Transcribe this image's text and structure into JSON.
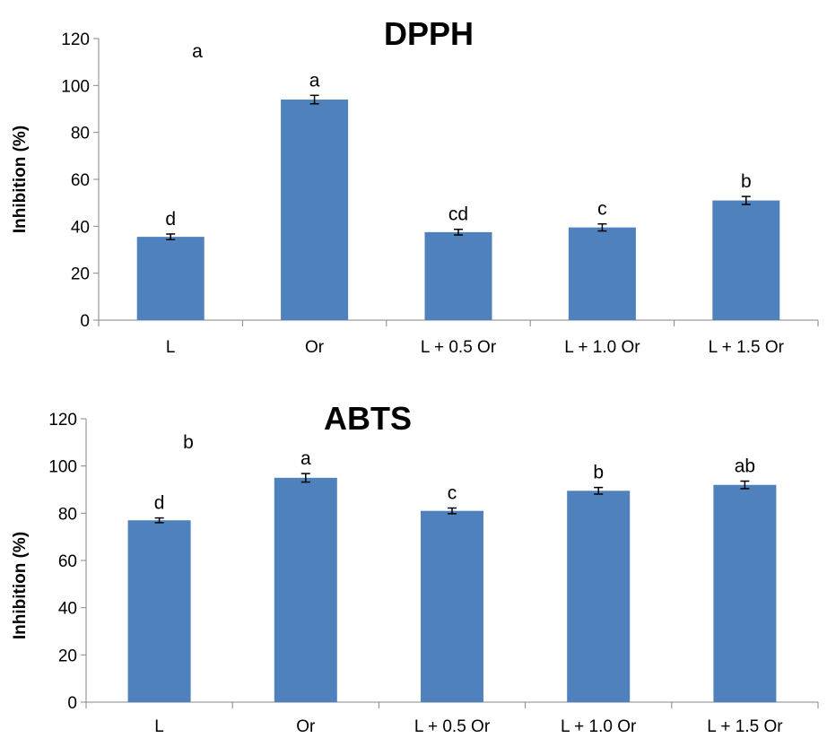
{
  "chart_data": [
    {
      "type": "bar",
      "title": "DPPH",
      "xlabel": "",
      "ylabel": "Inhibition (%)",
      "ylim": [
        0,
        120
      ],
      "yticks": [
        0,
        20,
        40,
        60,
        80,
        100,
        120
      ],
      "categories": [
        "L",
        "Or",
        "L + 0.5 Or",
        "L + 1.0 Or",
        "L + 1.5 Or"
      ],
      "values": [
        35.5,
        94,
        37.5,
        39.5,
        51
      ],
      "errors": [
        1.2,
        1.8,
        1.2,
        1.5,
        1.7
      ],
      "significance": [
        "d",
        "a",
        "cd",
        "c",
        "b"
      ],
      "annotation": "a",
      "color": "#4F81BD",
      "grid": false
    },
    {
      "type": "bar",
      "title": "ABTS",
      "xlabel": "",
      "ylabel": "Inhibition (%)",
      "ylim": [
        0,
        120
      ],
      "yticks": [
        0,
        20,
        40,
        60,
        80,
        100,
        120
      ],
      "categories": [
        "L",
        "Or",
        "L + 0.5 Or",
        "L + 1.0 Or",
        "L + 1.5 Or"
      ],
      "values": [
        77,
        95,
        81,
        89.5,
        92
      ],
      "errors": [
        1.0,
        1.8,
        1.2,
        1.4,
        1.6
      ],
      "significance": [
        "d",
        "a",
        "c",
        "b",
        "ab"
      ],
      "annotation": "b",
      "color": "#4F81BD",
      "grid": false
    }
  ]
}
